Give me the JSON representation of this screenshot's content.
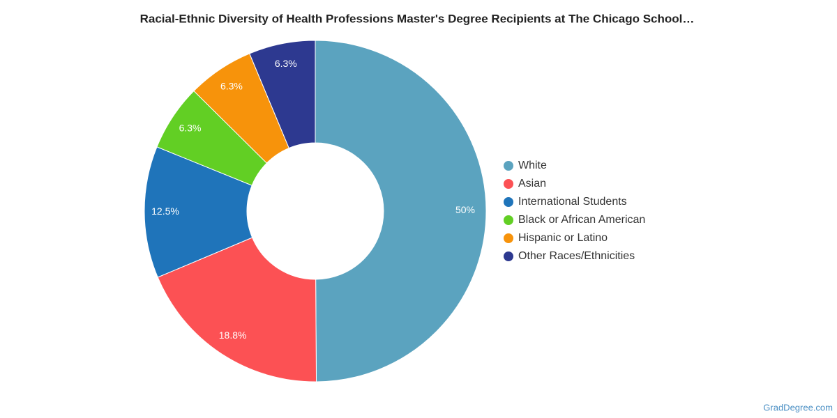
{
  "chart_data": {
    "type": "donut",
    "title": "Racial-Ethnic Diversity of Health Professions Master's Degree Recipients at The Chicago School…",
    "categories": [
      "White",
      "Asian",
      "International Students",
      "Black or African American",
      "Hispanic or Latino",
      "Other Races/Ethnicities"
    ],
    "values": [
      50,
      18.8,
      12.5,
      6.3,
      6.3,
      6.3
    ],
    "value_labels": [
      "50%",
      "18.8%",
      "12.5%",
      "6.3%",
      "6.3%",
      "6.3%"
    ],
    "colors": [
      "#5ba3bf",
      "#fc5154",
      "#1f74ba",
      "#62cf24",
      "#f7930b",
      "#2d3990"
    ],
    "legend": "right",
    "source": "GradDegree.com"
  }
}
